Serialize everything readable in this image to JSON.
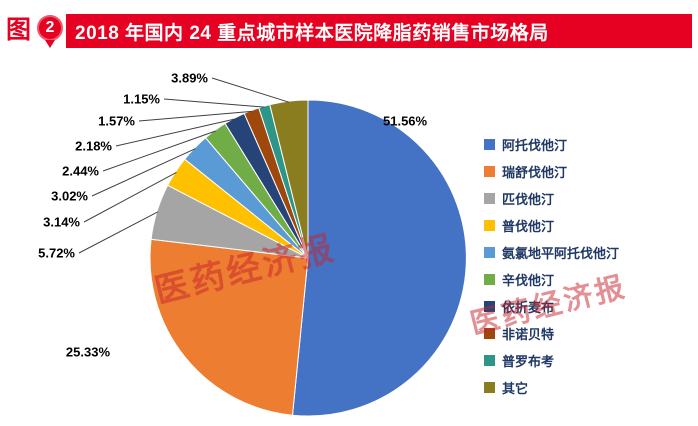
{
  "header": {
    "figure_label": "图",
    "figure_number": "2",
    "title": "2018 年国内 24 重点城市样本医院降脂药销售市场格局",
    "banner_color": "#E60021"
  },
  "watermark": {
    "text": "医药经济报",
    "color": "#C8232C"
  },
  "chart_data": {
    "type": "pie",
    "title": "2018 年国内 24 重点城市样本医院降脂药销售市场格局",
    "start_angle_deg": 0,
    "direction": "clockwise",
    "legend_position": "right",
    "slices": [
      {
        "name": "阿托伐他汀",
        "value": 51.56,
        "label": "51.56%",
        "color": "#4472C4"
      },
      {
        "name": "瑞舒伐他汀",
        "value": 25.33,
        "label": "25.33%",
        "color": "#ED7D31"
      },
      {
        "name": "匹伐他汀",
        "value": 5.72,
        "label": "5.72%",
        "color": "#A5A5A5"
      },
      {
        "name": "普伐他汀",
        "value": 3.14,
        "label": "3.14%",
        "color": "#FFC000"
      },
      {
        "name": "氨氯地平阿托伐他汀",
        "value": 3.02,
        "label": "3.02%",
        "color": "#5B9BD5"
      },
      {
        "name": "辛伐他汀",
        "value": 2.44,
        "label": "2.44%",
        "color": "#70AD47"
      },
      {
        "name": "依折麦布",
        "value": 2.18,
        "label": "2.18%",
        "color": "#264478"
      },
      {
        "name": "非诺贝特",
        "value": 1.57,
        "label": "1.57%",
        "color": "#9E480E"
      },
      {
        "name": "普罗布考",
        "value": 1.15,
        "label": "1.15%",
        "color": "#2E9688"
      },
      {
        "name": "其它",
        "value": 3.89,
        "label": "3.89%",
        "color": "#8A7D20"
      }
    ]
  }
}
